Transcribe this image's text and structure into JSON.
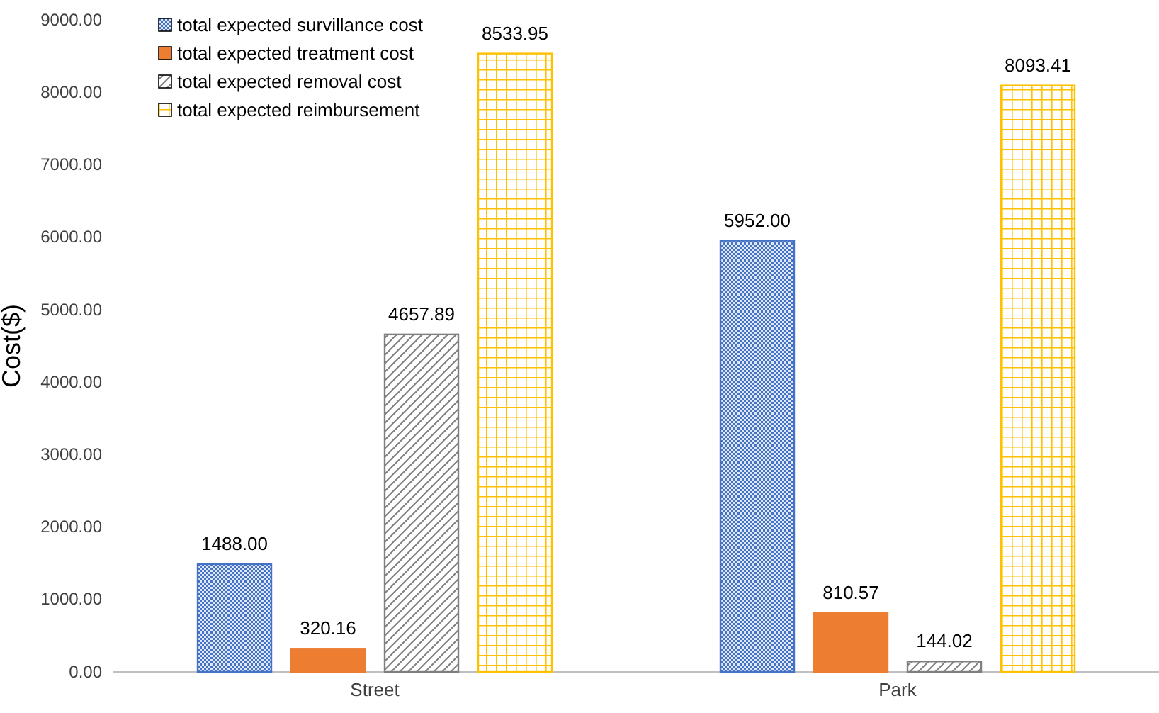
{
  "chart_data": {
    "type": "bar",
    "ylabel": "Cost($)",
    "categories": [
      "Street",
      "Park"
    ],
    "series": [
      {
        "name": "total expected survillance cost",
        "color": "#4472c4",
        "values": [
          1488.0,
          5952.0
        ],
        "value_labels": [
          "1488.00",
          "5952.00"
        ]
      },
      {
        "name": "total expected treatment cost",
        "color": "#ed7d31",
        "values": [
          320.16,
          810.57
        ],
        "value_labels": [
          "320.16",
          "810.57"
        ]
      },
      {
        "name": "total expected removal cost",
        "color": "#7f7f7f",
        "values": [
          4657.89,
          144.02
        ],
        "value_labels": [
          "4657.89",
          "144.02"
        ]
      },
      {
        "name": "total expected reimbursement",
        "color": "#ffc000",
        "values": [
          8533.95,
          8093.41
        ],
        "value_labels": [
          "8533.95",
          "8093.41"
        ]
      }
    ],
    "ylim": [
      0,
      9000
    ],
    "yticks": [
      {
        "value": 0,
        "label": "0.00"
      },
      {
        "value": 1000,
        "label": "1000.00"
      },
      {
        "value": 2000,
        "label": "2000.00"
      },
      {
        "value": 3000,
        "label": "3000.00"
      },
      {
        "value": 4000,
        "label": "4000.00"
      },
      {
        "value": 5000,
        "label": "5000.00"
      },
      {
        "value": 6000,
        "label": "6000.00"
      },
      {
        "value": 7000,
        "label": "7000.00"
      },
      {
        "value": 8000,
        "label": "8000.00"
      },
      {
        "value": 9000,
        "label": "9000.00"
      }
    ],
    "grid": false,
    "legend": "top left"
  }
}
